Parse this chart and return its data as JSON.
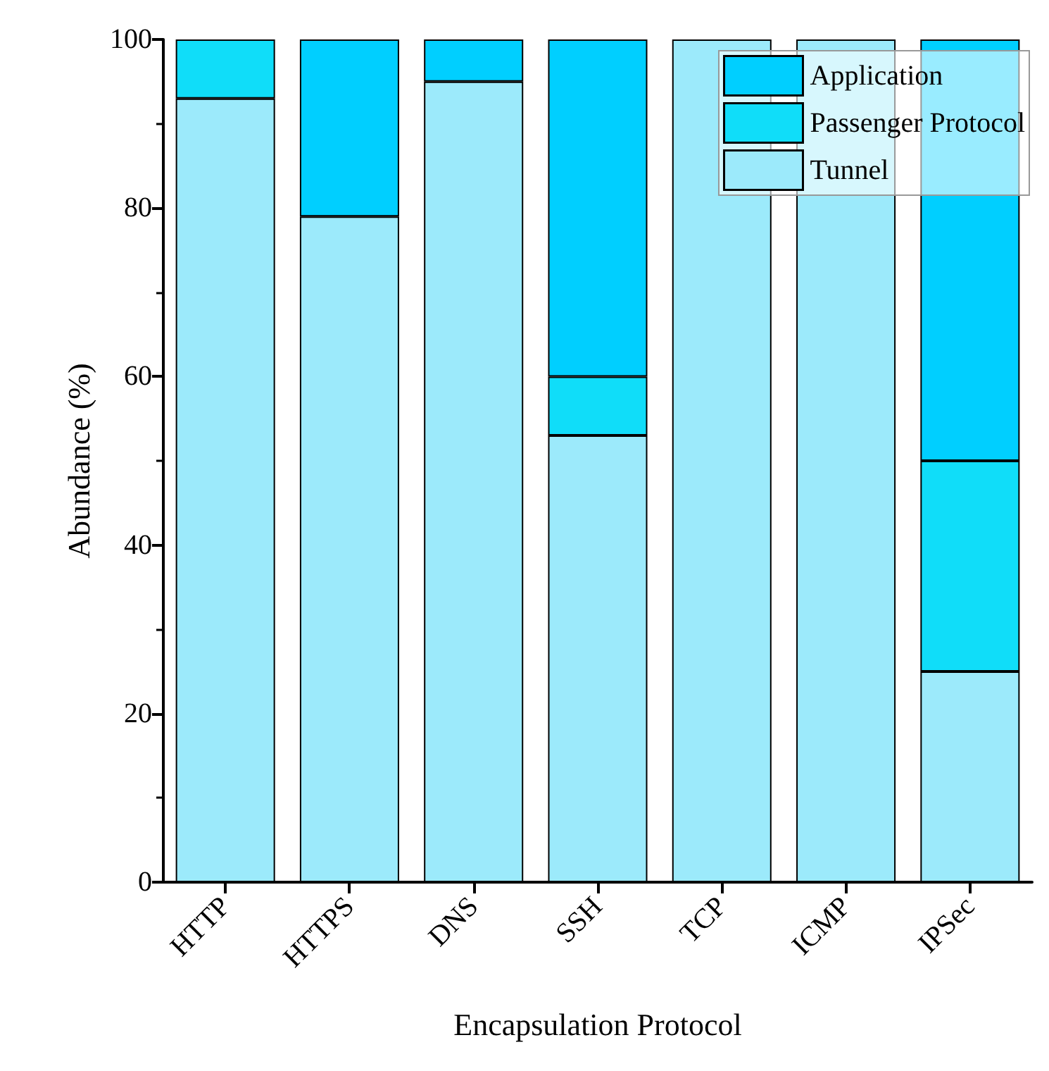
{
  "chart_data": {
    "type": "bar",
    "stacked": true,
    "xlabel": "Encapsulation Protocol",
    "ylabel": "Abundance (%)",
    "categories": [
      "HTTP",
      "HTTPS",
      "DNS",
      "SSH",
      "TCP",
      "ICMP",
      "IPSec"
    ],
    "series": [
      {
        "name": "Tunnel",
        "color": "#9ceafb",
        "values": [
          93,
          79,
          95,
          53,
          100,
          100,
          25
        ]
      },
      {
        "name": "Passenger Protocol",
        "color": "#10ddf9",
        "values": [
          7,
          0,
          0,
          7,
          0,
          0,
          25
        ]
      },
      {
        "name": "Application",
        "color": "#00cfff",
        "values": [
          0,
          21,
          5,
          40,
          0,
          0,
          50
        ]
      }
    ],
    "ylim": [
      0,
      100
    ],
    "yticks": [
      0,
      20,
      40,
      60,
      80,
      100
    ],
    "grid": false,
    "legend": "top right"
  }
}
